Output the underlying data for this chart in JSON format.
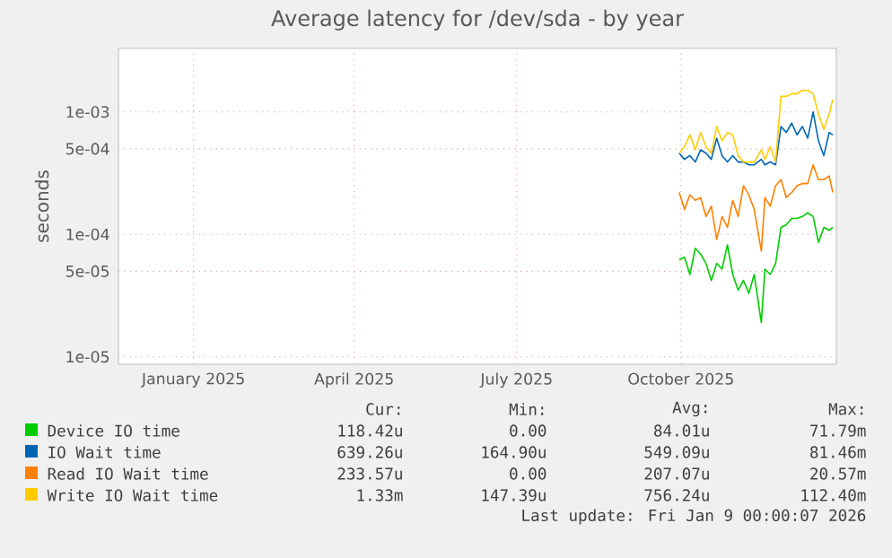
{
  "chart_data": {
    "type": "line",
    "title": "Average latency for /dev/sda - by year",
    "ylabel": "seconds",
    "x": [
      "2025-10-15",
      "2025-10-18",
      "2025-10-21",
      "2025-10-24",
      "2025-10-27",
      "2025-10-30",
      "2025-11-02",
      "2025-11-05",
      "2025-11-08",
      "2025-11-11",
      "2025-11-14",
      "2025-11-17",
      "2025-11-20",
      "2025-11-23",
      "2025-11-26",
      "2025-11-30",
      "2025-12-02",
      "2025-12-05",
      "2025-12-08",
      "2025-12-11",
      "2025-12-14",
      "2025-12-17",
      "2025-12-20",
      "2025-12-23",
      "2025-12-26",
      "2025-12-29",
      "2026-01-01",
      "2026-01-04",
      "2026-01-07",
      "2026-01-09"
    ],
    "series": [
      {
        "name": "Device IO time",
        "color": "#00cc00",
        "values": [
          6.2e-05,
          6.5e-05,
          4.7e-05,
          7.7e-05,
          6.9e-05,
          5.8e-05,
          4.2e-05,
          5.8e-05,
          5.2e-05,
          8.2e-05,
          4.7e-05,
          3.5e-05,
          4.2e-05,
          3.3e-05,
          4.7e-05,
          1.9e-05,
          5.2e-05,
          4.7e-05,
          5.8e-05,
          0.000114,
          0.00012,
          0.000135,
          0.000135,
          0.00014,
          0.00015,
          0.00014,
          8.6e-05,
          0.000114,
          0.000108,
          0.000114
        ]
      },
      {
        "name": "IO Wait time",
        "color": "#0066b3",
        "values": [
          0.00046,
          0.00041,
          0.00044,
          0.00039,
          0.00049,
          0.00046,
          0.00041,
          0.00061,
          0.00044,
          0.00039,
          0.00044,
          0.00039,
          0.00039,
          0.00037,
          0.00037,
          0.00041,
          0.00037,
          0.00039,
          0.00037,
          0.00076,
          0.00068,
          0.00081,
          0.00065,
          0.00076,
          0.00061,
          0.001,
          0.00058,
          0.00044,
          0.00068,
          0.00065
        ]
      },
      {
        "name": "Read IO Wait time",
        "color": "#ff8000",
        "values": [
          0.00022,
          0.00016,
          0.00021,
          0.00019,
          0.0002,
          0.00014,
          0.00017,
          9.1e-05,
          0.00014,
          0.000114,
          0.00019,
          0.00014,
          0.00025,
          0.00021,
          0.00016,
          7.3e-05,
          0.0002,
          0.00017,
          0.00025,
          0.00028,
          0.0002,
          0.00022,
          0.00025,
          0.00026,
          0.00026,
          0.00037,
          0.00028,
          0.00028,
          0.0003,
          0.00022
        ]
      },
      {
        "name": "Write IO Wait time",
        "color": "#ffcc00",
        "values": [
          0.00046,
          0.00052,
          0.00065,
          0.00049,
          0.00068,
          0.00052,
          0.00046,
          0.00076,
          0.00058,
          0.00068,
          0.00065,
          0.00044,
          0.00039,
          0.00039,
          0.00039,
          0.00049,
          0.00041,
          0.00052,
          0.00039,
          0.00134,
          0.00134,
          0.00141,
          0.00141,
          0.0015,
          0.0015,
          0.00141,
          0.00096,
          0.00072,
          0.00096,
          0.00126
        ]
      }
    ],
    "xlim": [
      "2024-12-05",
      "2026-01-11"
    ],
    "xticks": [
      {
        "value": "2025-01-16",
        "label": "January 2025"
      },
      {
        "value": "2025-04-16",
        "label": "April 2025"
      },
      {
        "value": "2025-07-16",
        "label": "July 2025"
      },
      {
        "value": "2025-10-16",
        "label": "October 2025"
      }
    ],
    "ylim": [
      8.7e-06,
      0.0033
    ],
    "yticks": [
      {
        "value": 1e-05,
        "label": "1e-05"
      },
      {
        "value": 5e-05,
        "label": "5e-05"
      },
      {
        "value": 0.0001,
        "label": "1e-04"
      },
      {
        "value": 0.0005,
        "label": "5e-04"
      },
      {
        "value": 0.001,
        "label": "1e-03"
      }
    ],
    "log": "y",
    "grid": true,
    "legend": "bottom",
    "annotations": [
      "Cur:",
      "Min:",
      "Avg:",
      "Max:",
      "118.42u",
      "0.00",
      "84.01u",
      "71.79m",
      "639.26u",
      "164.90u",
      "549.09u",
      "81.46m",
      "233.57u",
      "0.00",
      "207.07u",
      "20.57m",
      "1.33m",
      "147.39u",
      "756.24u",
      "112.40m",
      "Last update: Fri Jan  9 00:00:07 2026"
    ]
  }
}
